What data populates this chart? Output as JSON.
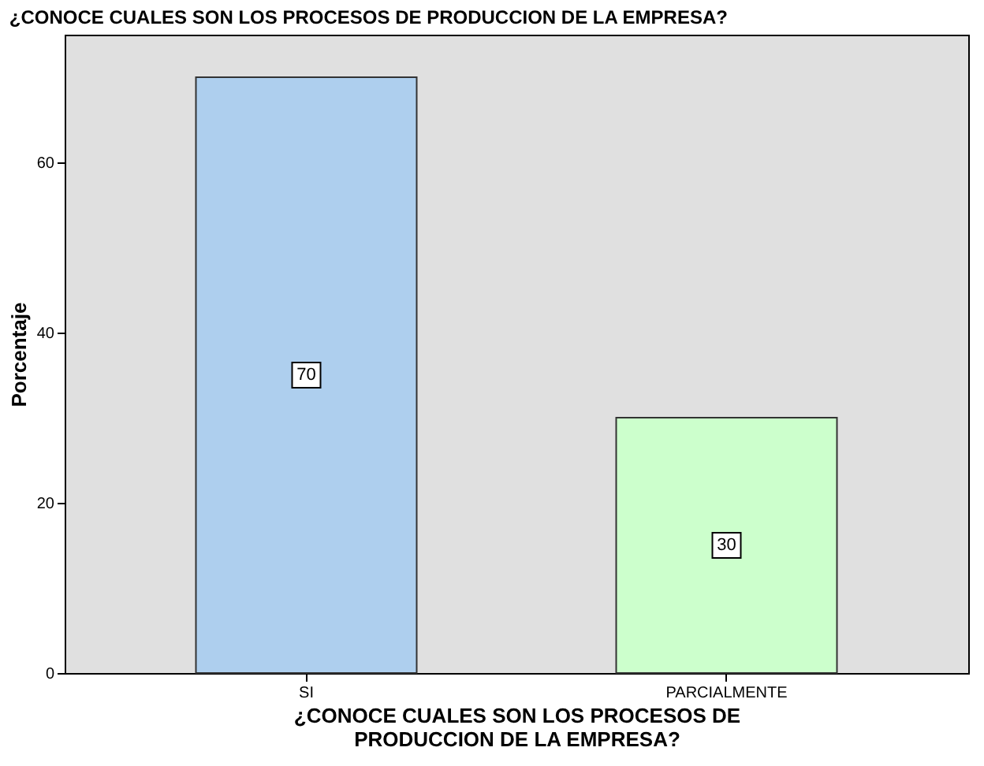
{
  "chart_data": {
    "type": "bar",
    "title": "¿CONOCE CUALES SON LOS PROCESOS DE PRODUCCION DE LA EMPRESA?",
    "xlabel": "¿CONOCE CUALES SON LOS PROCESOS DE PRODUCCION DE LA EMPRESA?",
    "ylabel": "Porcentaje",
    "categories": [
      "SI",
      "PARCIALMENTE"
    ],
    "values": [
      70,
      30
    ],
    "colors": [
      "#aecfee",
      "#ccffcc"
    ],
    "ylim": [
      0,
      75
    ],
    "yticks": [
      0,
      20,
      40,
      60
    ],
    "grid": false,
    "data_labels": true
  }
}
